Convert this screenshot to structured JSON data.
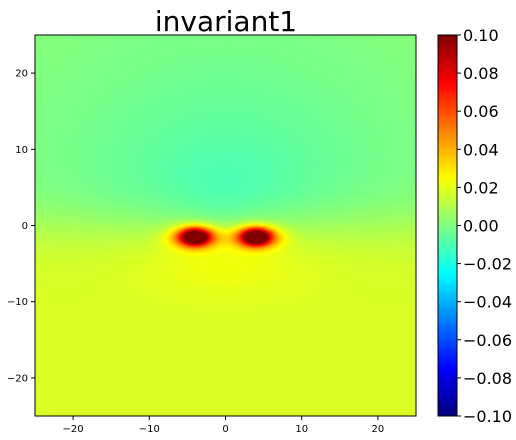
{
  "chart_data": {
    "type": "heatmap",
    "title": "invariant1",
    "xlabel": "",
    "ylabel": "",
    "xlim": [
      -25,
      25
    ],
    "ylim": [
      -25,
      25
    ],
    "x_ticks": [
      -20,
      -10,
      0,
      10,
      20
    ],
    "y_ticks": [
      -20,
      -10,
      0,
      10,
      20
    ],
    "colormap": "jet",
    "clim": [
      -0.1,
      0.1
    ],
    "colorbar_ticks": [
      "0.10",
      "0.08",
      "0.06",
      "0.04",
      "0.02",
      "0.00",
      "−0.02",
      "−0.04",
      "−0.06",
      "−0.08",
      "−0.10"
    ],
    "colorbar_tick_values": [
      0.1,
      0.08,
      0.06,
      0.04,
      0.02,
      0.0,
      -0.02,
      -0.04,
      -0.06,
      -0.08,
      -0.1
    ],
    "grid": false,
    "field_features": [
      {
        "description": "lower-half positive region",
        "center": [
          0,
          -8
        ],
        "value": 0.015
      },
      {
        "description": "upper-half negative region",
        "center": [
          0,
          6
        ],
        "value": -0.018
      },
      {
        "description": "left hotspot",
        "center": [
          -4,
          -1.5
        ],
        "value": 0.1
      },
      {
        "description": "right hotspot",
        "center": [
          4,
          -1.5
        ],
        "value": 0.1
      }
    ]
  }
}
